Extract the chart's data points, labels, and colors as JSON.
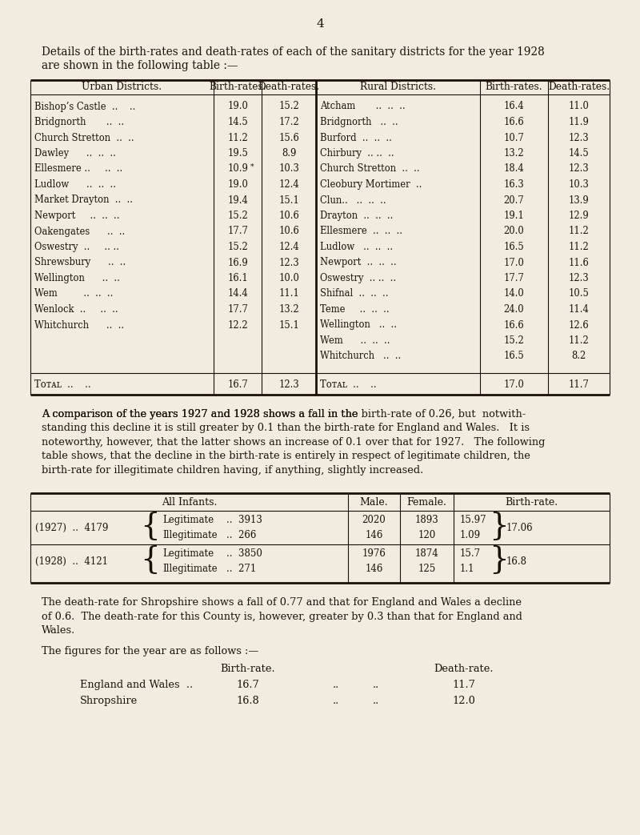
{
  "bg_color": "#f2ece0",
  "text_color": "#1a1008",
  "page_number": "4",
  "intro_line1": "Details of the birth-rates and death-rates of each of the sanitary districts for the year 1928",
  "intro_line2": "are shown in the following table :—",
  "urban_names": [
    "Bishop’s Castle  ..    ..",
    "Bridgnorth       ..  ..",
    "Church Stretton  ..  ..",
    "Dawley      ..  ..  ..",
    "Ellesmere ..     ..  ..",
    "Ludlow      ..  ..  ..",
    "Market Drayton  ..  ..",
    "Newport     ..  ..  ..",
    "Oakengates      ..  ..",
    "Oswestry  ..     .. ..",
    "Shrewsbury      ..  ..",
    "Wellington      ..  ..",
    "Wem         ..  ..  ..",
    "Wenlock  ..     ..  ..",
    "Whitchurch      ..  .."
  ],
  "urban_br": [
    "19.0",
    "14.5",
    "11.2",
    "19.5",
    "10.9",
    "19.0",
    "19.4",
    "15.2",
    "17.7",
    "15.2",
    "16.9",
    "16.1",
    "14.4",
    "17.7",
    "12.2"
  ],
  "urban_dr": [
    "15.2",
    "17.2",
    "15.6",
    "8.9",
    "10.3",
    "12.4",
    "15.1",
    "10.6",
    "10.6",
    "12.4",
    "12.3",
    "10.0",
    "11.1",
    "13.2",
    "15.1"
  ],
  "ellesmere_urban_idx": 4,
  "rural_names": [
    "Atcham       ..  ..  ..",
    "Bridgnorth   ..  ..",
    "Burford  ..  ..  ..",
    "Chirbury  .. ..  ..",
    "Church Stretton  ..  ..",
    "Cleobury Mortimer  ..",
    "Clun..   ..  ..  ..",
    "Drayton  ..  ..  ..",
    "Ellesmere  ..  ..  ..",
    "Ludlow   ..  ..  ..",
    "Newport  ..  ..  ..",
    "Oswestry  .. ..  ..",
    "Shifnal  ..  ..  ..",
    "Teme     ..  ..  ..",
    "Wellington   ..  ..",
    "Wem      ..  ..  ..",
    "Whitchurch   ..  .."
  ],
  "rural_br": [
    "16.4",
    "16.6",
    "10.7",
    "13.2",
    "18.4",
    "16.3",
    "20.7",
    "19.1",
    "20.0",
    "16.5",
    "17.0",
    "17.7",
    "14.0",
    "24.0",
    "16.6",
    "15.2",
    "16.5"
  ],
  "rural_dr": [
    "11.0",
    "11.9",
    "12.3",
    "14.5",
    "12.3",
    "10.3",
    "13.9",
    "12.9",
    "11.2",
    "11.2",
    "11.6",
    "12.3",
    "10.5",
    "11.4",
    "12.6",
    "11.2",
    "8.2"
  ],
  "urban_total_br": "16.7",
  "urban_total_dr": "12.3",
  "rural_total_br": "17.0",
  "rural_total_dr": "11.7",
  "para1_lines": [
    "A comparison of the years 1927 and 1928 shows a fall in the birth-rate of 0.26, but  notwith-",
    "standing this decline it is still greater by 0.1 than the birth-rate for England and Wales.   It is",
    "noteworthy, however, that the latter shows an increase of 0.1 over that for 1927.   The following",
    "table shows, that the decline in the birth-rate is entirely in respect of legitimate children, the",
    "birth-rate for illegitimate children having, if anything, slightly increased."
  ],
  "para1_italic_word": "birth-rate",
  "para1_italic_pos": "first_line",
  "y1927_label": "(1927)",
  "y1927_total": "4179",
  "y1927_legit_n": "3913",
  "y1927_illeg_n": "266",
  "y1927_legit_male": "2020",
  "y1927_illeg_male": "146",
  "y1927_legit_female": "1893",
  "y1927_illeg_female": "120",
  "y1927_legit_rate": "15.97",
  "y1927_illeg_rate": "1.09",
  "y1927_total_rate": "17.06",
  "y1928_label": "(1928)",
  "y1928_total": "4121",
  "y1928_legit_n": "3850",
  "y1928_illeg_n": "271",
  "y1928_legit_male": "1976",
  "y1928_illeg_male": "146",
  "y1928_legit_female": "1874",
  "y1928_illeg_female": "125",
  "y1928_legit_rate": "15.7",
  "y1928_illeg_rate": "1.1",
  "y1928_total_rate": "16.8",
  "para2_lines": [
    "The death-rate for Shropshire shows a fall of 0.77 and that for England and Wales a decline",
    "of 0.6.  The death-rate for this County is, however, greater by 0.3 than that for England and",
    "Wales."
  ],
  "para3": "The figures for the year are as follows :—",
  "final_rows": [
    [
      "England and Wales  ..",
      "16.7",
      "11.7"
    ],
    [
      "Shropshire",
      "16.8",
      "12.0"
    ]
  ]
}
